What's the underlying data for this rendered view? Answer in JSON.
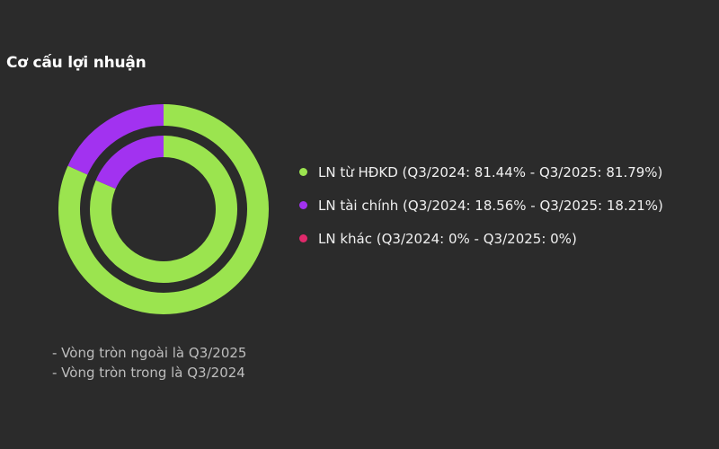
{
  "title": "Cơ cấu lợi nhuận",
  "chart_data": {
    "type": "pie",
    "subtype": "nested-donut",
    "rings": [
      {
        "name": "Q3/2025",
        "position": "outer",
        "values": [
          81.79,
          18.21,
          0
        ]
      },
      {
        "name": "Q3/2024",
        "position": "inner",
        "values": [
          81.44,
          18.56,
          0
        ]
      }
    ],
    "categories": [
      "LN từ HĐKD",
      "LN tài chính",
      "LN khác"
    ],
    "colors": [
      "#9be44f",
      "#a232f0",
      "#e0296b"
    ],
    "legend_position": "right"
  },
  "legend": [
    {
      "label": "LN từ HĐKD (Q3/2024: 81.44% - Q3/2025: 81.79%)",
      "color": "#9be44f"
    },
    {
      "label": "LN tài chính (Q3/2024: 18.56% - Q3/2025: 18.21%)",
      "color": "#a232f0"
    },
    {
      "label": "LN khác (Q3/2024: 0% - Q3/2025: 0%)",
      "color": "#e0296b"
    }
  ],
  "notes": [
    "- Vòng tròn ngoài là Q3/2025",
    "- Vòng tròn trong là Q3/2024"
  ]
}
